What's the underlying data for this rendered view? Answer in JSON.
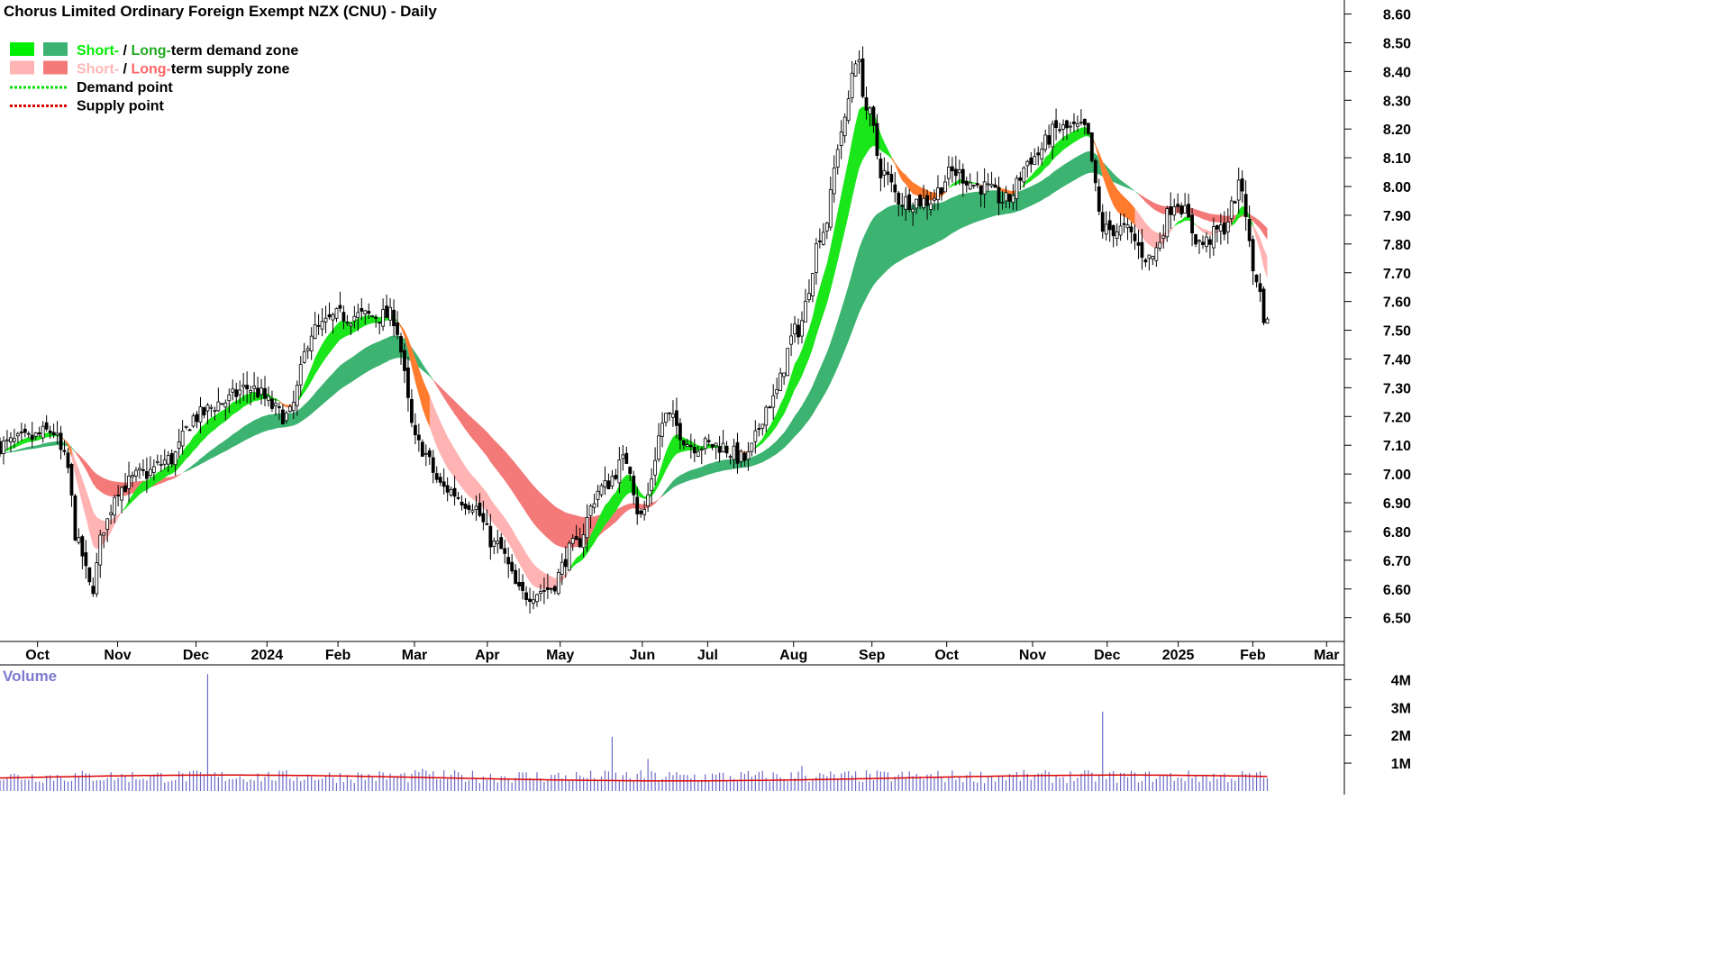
{
  "chart_data": {
    "type": "candlestick",
    "title": "Chorus Limited Ordinary Foreign Exempt NZX (CNU) - Daily",
    "legend": {
      "placement": "top-left",
      "items": [
        {
          "label_parts": [
            {
              "text": "Short-",
              "color": "#00ee00"
            },
            {
              "text": " / ",
              "color": "#000000"
            },
            {
              "text": "Long-",
              "color": "#22aa22"
            },
            {
              "text": "term demand zone",
              "color": "#000000"
            }
          ],
          "swatches": [
            "#00ee00",
            "#3cb371"
          ]
        },
        {
          "label_parts": [
            {
              "text": "Short-",
              "color": "#ffb6b6"
            },
            {
              "text": " / ",
              "color": "#000000"
            },
            {
              "text": "Long-",
              "color": "#ff6666"
            },
            {
              "text": "term supply zone",
              "color": "#000000"
            }
          ],
          "swatches": [
            "#ffb3b3",
            "#f47a7a"
          ]
        },
        {
          "label": "Demand point",
          "line_color": "#00dd00",
          "dotted": true
        },
        {
          "label": "Supply point",
          "line_color": "#dd0000",
          "dotted": true
        }
      ]
    },
    "x_axis": {
      "tick_labels": [
        "Oct",
        "Nov",
        "Dec",
        "2024",
        "Feb",
        "Mar",
        "Apr",
        "May",
        "Jun",
        "Jul",
        "Aug",
        "Sep",
        "Oct",
        "Nov",
        "Dec",
        "2025",
        "Feb",
        "Mar"
      ],
      "tick_fractions": [
        0.0279,
        0.0875,
        0.1458,
        0.1986,
        0.2514,
        0.3083,
        0.3625,
        0.4167,
        0.4778,
        0.5264,
        0.5903,
        0.6486,
        0.7042,
        0.7681,
        0.8236,
        0.8764,
        0.9319,
        0.9868
      ]
    },
    "y_axis": {
      "ylim": [
        6.43,
        8.63
      ],
      "tick_values": [
        6.5,
        6.6,
        6.7,
        6.8,
        6.9,
        7.0,
        7.1,
        7.2,
        7.3,
        7.4,
        7.5,
        7.6,
        7.7,
        7.8,
        7.9,
        8.0,
        8.1,
        8.2,
        8.3,
        8.4,
        8.5,
        8.6
      ],
      "tick_labels": [
        "6.50",
        "6.60",
        "6.70",
        "6.80",
        "6.90",
        "7.00",
        "7.10",
        "7.20",
        "7.30",
        "7.40",
        "7.50",
        "7.60",
        "7.70",
        "7.80",
        "7.90",
        "8.00",
        "8.10",
        "8.20",
        "8.30",
        "8.40",
        "8.50",
        "8.60"
      ]
    },
    "price_anchors": [
      [
        0.0,
        7.1
      ],
      [
        0.02,
        7.12
      ],
      [
        0.04,
        7.15
      ],
      [
        0.05,
        7.05
      ],
      [
        0.06,
        6.75
      ],
      [
        0.07,
        6.6
      ],
      [
        0.08,
        6.82
      ],
      [
        0.09,
        6.95
      ],
      [
        0.11,
        7.0
      ],
      [
        0.13,
        7.05
      ],
      [
        0.15,
        7.2
      ],
      [
        0.17,
        7.25
      ],
      [
        0.19,
        7.3
      ],
      [
        0.22,
        7.2
      ],
      [
        0.24,
        7.5
      ],
      [
        0.26,
        7.55
      ],
      [
        0.28,
        7.55
      ],
      [
        0.3,
        7.55
      ],
      [
        0.32,
        7.1
      ],
      [
        0.34,
        6.95
      ],
      [
        0.36,
        6.9
      ],
      [
        0.38,
        6.75
      ],
      [
        0.4,
        6.58
      ],
      [
        0.42,
        6.6
      ],
      [
        0.44,
        6.75
      ],
      [
        0.46,
        6.95
      ],
      [
        0.48,
        7.05
      ],
      [
        0.49,
        6.85
      ],
      [
        0.51,
        7.2
      ],
      [
        0.53,
        7.1
      ],
      [
        0.55,
        7.1
      ],
      [
        0.57,
        7.05
      ],
      [
        0.59,
        7.25
      ],
      [
        0.61,
        7.5
      ],
      [
        0.63,
        7.85
      ],
      [
        0.645,
        8.2
      ],
      [
        0.655,
        8.45
      ],
      [
        0.665,
        8.25
      ],
      [
        0.675,
        8.05
      ],
      [
        0.69,
        7.95
      ],
      [
        0.71,
        7.95
      ],
      [
        0.73,
        8.05
      ],
      [
        0.75,
        8.0
      ],
      [
        0.77,
        7.95
      ],
      [
        0.79,
        8.1
      ],
      [
        0.81,
        8.2
      ],
      [
        0.83,
        8.2
      ],
      [
        0.845,
        7.85
      ],
      [
        0.86,
        7.85
      ],
      [
        0.88,
        7.75
      ],
      [
        0.9,
        7.95
      ],
      [
        0.92,
        7.8
      ],
      [
        0.935,
        7.85
      ],
      [
        0.95,
        8.0
      ],
      [
        0.96,
        7.7
      ],
      [
        0.97,
        7.52
      ]
    ],
    "volume": {
      "label": "Volume",
      "ylim": [
        0,
        4400000
      ],
      "tick_values": [
        1000000,
        2000000,
        3000000,
        4000000
      ],
      "tick_labels": [
        "1M",
        "2M",
        "3M",
        "4M"
      ],
      "spikes": [
        [
          0.159,
          4200000
        ],
        [
          0.468,
          1950000
        ],
        [
          0.615,
          900000
        ],
        [
          0.843,
          2850000
        ],
        [
          0.495,
          1150000
        ],
        [
          0.322,
          800000
        ],
        [
          0.63,
          600000
        ]
      ],
      "moving_average_level": 520000
    }
  }
}
